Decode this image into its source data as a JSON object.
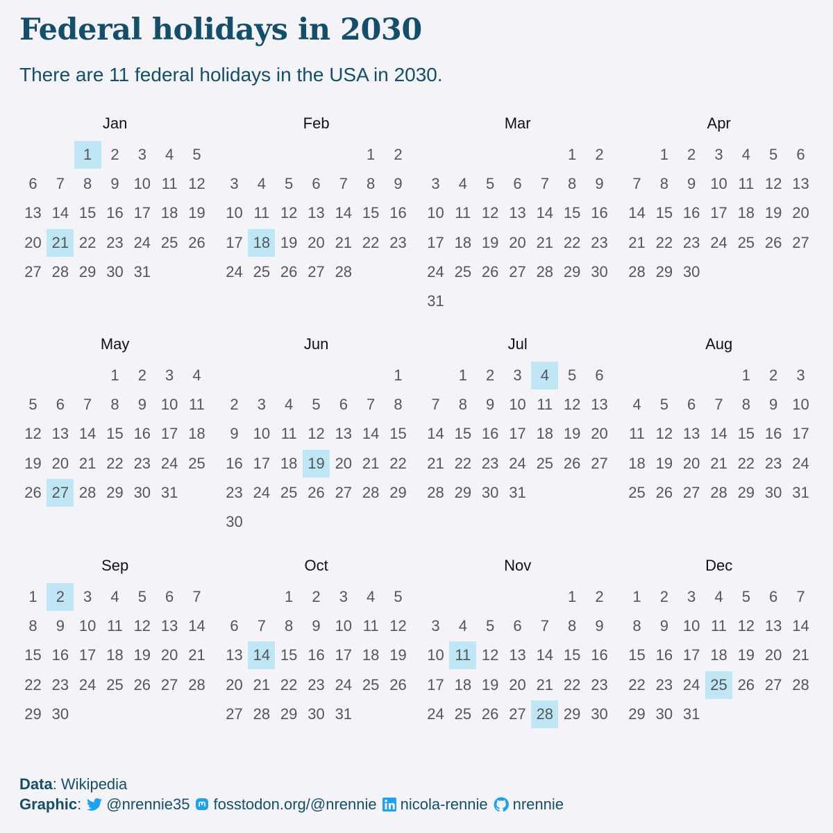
{
  "title": "Federal holidays in 2030",
  "subtitle": "There are 11 federal holidays in the USA in 2030.",
  "colors": {
    "text": "#134e6b",
    "holiday_highlight": "#bfe6f5",
    "day_text": "#555555",
    "background": "#f4f3f8"
  },
  "chart_data": {
    "type": "table",
    "year": 2030,
    "months": [
      {
        "name": "Jan",
        "start_weekday": 2,
        "days": 31,
        "holidays": [
          1,
          21
        ]
      },
      {
        "name": "Feb",
        "start_weekday": 5,
        "days": 28,
        "holidays": [
          18
        ]
      },
      {
        "name": "Mar",
        "start_weekday": 5,
        "days": 31,
        "holidays": []
      },
      {
        "name": "Apr",
        "start_weekday": 1,
        "days": 30,
        "holidays": []
      },
      {
        "name": "May",
        "start_weekday": 3,
        "days": 31,
        "holidays": [
          27
        ]
      },
      {
        "name": "Jun",
        "start_weekday": 6,
        "days": 30,
        "holidays": [
          19
        ]
      },
      {
        "name": "Jul",
        "start_weekday": 1,
        "days": 31,
        "holidays": [
          4
        ]
      },
      {
        "name": "Aug",
        "start_weekday": 4,
        "days": 31,
        "holidays": []
      },
      {
        "name": "Sep",
        "start_weekday": 0,
        "days": 30,
        "holidays": [
          2
        ]
      },
      {
        "name": "Oct",
        "start_weekday": 2,
        "days": 31,
        "holidays": [
          14
        ]
      },
      {
        "name": "Nov",
        "start_weekday": 5,
        "days": 30,
        "holidays": [
          11,
          28
        ]
      },
      {
        "name": "Dec",
        "start_weekday": 0,
        "days": 31,
        "holidays": [
          25
        ]
      }
    ]
  },
  "caption": {
    "data_label": "Data",
    "data_value": ": Wikipedia",
    "graphic_label": "Graphic",
    "graphic_sep": ":",
    "twitter_handle": "@nrennie35",
    "mastodon_handle": "fosstodon.org/@nrennie",
    "linkedin_handle": "nicola-rennie",
    "github_handle": "nrennie"
  },
  "icons": [
    "twitter-icon",
    "mastodon-icon",
    "linkedin-icon",
    "github-icon"
  ]
}
